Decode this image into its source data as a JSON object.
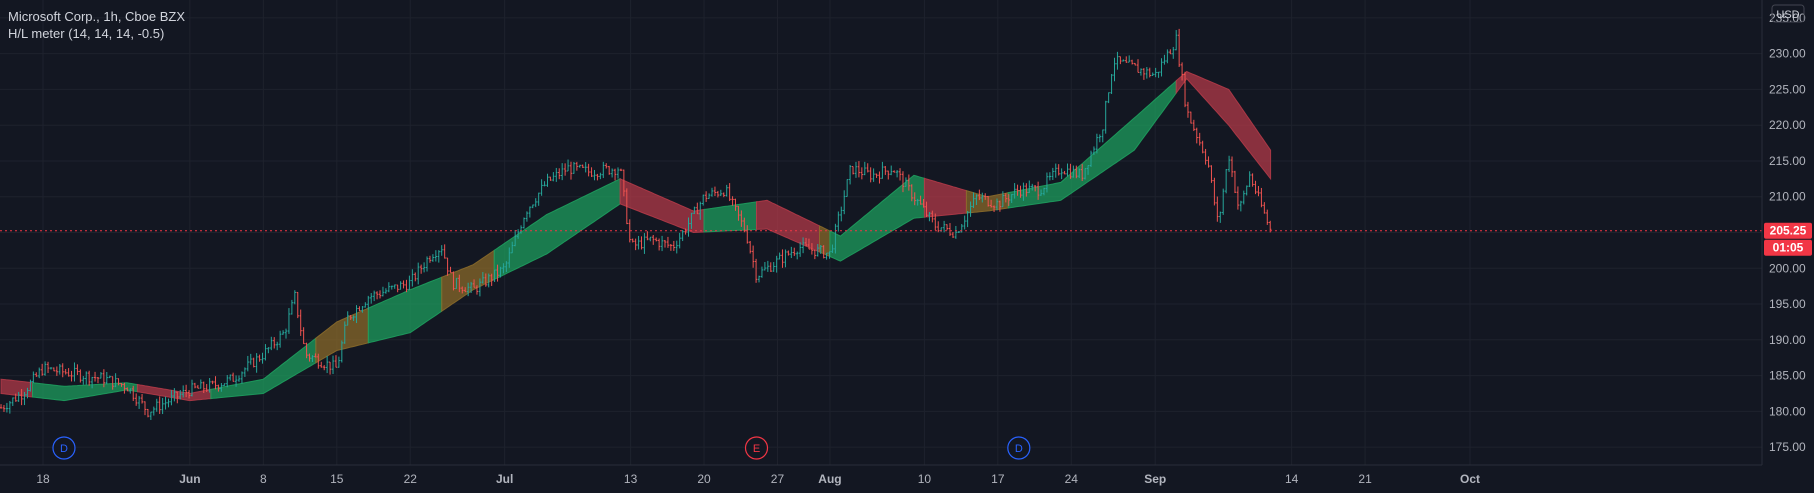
{
  "legend": {
    "title": "Microsoft Corp., 1h, Cboe BZX",
    "indicator": "H/L meter (14, 14, 14, -0.5)"
  },
  "currency": "USD",
  "price_label": "205.25",
  "countdown_label": "01:05",
  "event_markers": [
    {
      "letter": "D",
      "at": "May 20",
      "color": "#2962ff"
    },
    {
      "letter": "E",
      "at": "Jul 25",
      "color": "#f23645"
    },
    {
      "letter": "D",
      "at": "Aug 19",
      "color": "#2962ff"
    }
  ],
  "colors": {
    "background": "#131722",
    "grid": "#1e222d",
    "up_candle": "#26a69a",
    "down_candle": "#ef5350",
    "band_up": "#1e9e5e",
    "band_down": "#b23a48",
    "band_mixed": "#8a6a2a",
    "axis_text": "#b2b5be",
    "price_line": "#f23645"
  },
  "chart_data": {
    "type": "line",
    "title": "Microsoft Corp., 1h, Cboe BZX",
    "ylim": [
      172.5,
      237.5
    ],
    "ylabel": "USD",
    "y_ticks": [
      "175.00",
      "180.00",
      "185.00",
      "190.00",
      "195.00",
      "200.00",
      "205.00",
      "210.00",
      "215.00",
      "220.00",
      "225.00",
      "230.00",
      "235.00"
    ],
    "x_ticks": [
      "18",
      "Jun",
      "8",
      "15",
      "22",
      "Jul",
      "13",
      "20",
      "27",
      "Aug",
      "10",
      "17",
      "24",
      "Sep",
      "14",
      "21",
      "Oct"
    ],
    "x_tick_bold": [
      "Jun",
      "Jul",
      "Aug",
      "Sep",
      "Oct"
    ],
    "last_price": 205.25,
    "price_series": {
      "name": "Microsoft Corp.",
      "points": [
        [
          "May 14",
          180.5
        ],
        [
          "May 16",
          182.5
        ],
        [
          "May 18",
          186
        ],
        [
          "May 20",
          185.5
        ],
        [
          "May 22",
          185
        ],
        [
          "May 24",
          184.5
        ],
        [
          "May 26",
          183.5
        ],
        [
          "May 28",
          180
        ],
        [
          "Jun 1",
          183
        ],
        [
          "Jun 3",
          183.5
        ],
        [
          "Jun 5",
          184.5
        ],
        [
          "Jun 8",
          188
        ],
        [
          "Jun 10",
          191
        ],
        [
          "Jun 11",
          196
        ],
        [
          "Jun 12",
          188
        ],
        [
          "Jun 15",
          186
        ],
        [
          "Jun 16",
          193
        ],
        [
          "Jun 18",
          196
        ],
        [
          "Jun 20",
          197
        ],
        [
          "Jun 22",
          198
        ],
        [
          "Jun 24",
          202
        ],
        [
          "Jun 25",
          203
        ],
        [
          "Jun 26",
          198
        ],
        [
          "Jun 28",
          197
        ],
        [
          "Jul 1",
          200
        ],
        [
          "Jul 3",
          208
        ],
        [
          "Jul 5",
          212
        ],
        [
          "Jul 7",
          214
        ],
        [
          "Jul 9",
          213.5
        ],
        [
          "Jul 12",
          214
        ],
        [
          "Jul 13",
          203
        ],
        [
          "Jul 15",
          204
        ],
        [
          "Jul 17",
          203
        ],
        [
          "Jul 18",
          205
        ],
        [
          "Jul 20",
          210
        ],
        [
          "Jul 22",
          211
        ],
        [
          "Jul 24",
          205
        ],
        [
          "Jul 25",
          199
        ],
        [
          "Jul 27",
          201
        ],
        [
          "Jul 29",
          203
        ],
        [
          "Aug 1",
          202
        ],
        [
          "Aug 3",
          214
        ],
        [
          "Aug 5",
          213
        ],
        [
          "Aug 7",
          214
        ],
        [
          "Aug 9",
          210
        ],
        [
          "Aug 11",
          206
        ],
        [
          "Aug 13",
          205
        ],
        [
          "Aug 15",
          210
        ],
        [
          "Aug 17",
          209
        ],
        [
          "Aug 19",
          211
        ],
        [
          "Aug 21",
          211
        ],
        [
          "Aug 23",
          214
        ],
        [
          "Aug 25",
          213
        ],
        [
          "Aug 27",
          220
        ],
        [
          "Aug 28",
          229
        ],
        [
          "Aug 30",
          228
        ],
        [
          "Sep 1",
          227
        ],
        [
          "Sep 3",
          232
        ],
        [
          "Sep 4",
          222
        ],
        [
          "Sep 6",
          215
        ],
        [
          "Sep 7",
          206
        ],
        [
          "Sep 8",
          216
        ],
        [
          "Sep 9",
          208
        ],
        [
          "Sep 10",
          213
        ],
        [
          "Sep 12",
          205.25
        ]
      ]
    },
    "band_series": [
      {
        "name": "H/L meter upper",
        "points": [
          [
            "May 14",
            184.5
          ],
          [
            "May 20",
            183.5
          ],
          [
            "May 26",
            184
          ],
          [
            "Jun 1",
            182.5
          ],
          [
            "Jun 8",
            184.5
          ],
          [
            "Jun 15",
            192.5
          ],
          [
            "Jun 22",
            197
          ],
          [
            "Jun 28",
            200.5
          ],
          [
            "Jul 5",
            207.5
          ],
          [
            "Jul 12",
            212.5
          ],
          [
            "Jul 19",
            208
          ],
          [
            "Jul 26",
            209.5
          ],
          [
            "Aug 2",
            204.5
          ],
          [
            "Aug 9",
            213
          ],
          [
            "Aug 16",
            210
          ],
          [
            "Aug 23",
            212
          ],
          [
            "Aug 30",
            221
          ],
          [
            "Sep 4",
            227.5
          ],
          [
            "Sep 8",
            225
          ],
          [
            "Sep 12",
            216.5
          ]
        ]
      },
      {
        "name": "H/L meter lower",
        "points": [
          [
            "May 14",
            182.5
          ],
          [
            "May 20",
            181.5
          ],
          [
            "May 26",
            183
          ],
          [
            "Jun 1",
            181.5
          ],
          [
            "Jun 8",
            182.5
          ],
          [
            "Jun 15",
            188.5
          ],
          [
            "Jun 22",
            191
          ],
          [
            "Jun 28",
            197
          ],
          [
            "Jul 5",
            202
          ],
          [
            "Jul 12",
            209
          ],
          [
            "Jul 19",
            205
          ],
          [
            "Jul 26",
            205.5
          ],
          [
            "Aug 2",
            201
          ],
          [
            "Aug 9",
            207
          ],
          [
            "Aug 16",
            208
          ],
          [
            "Aug 23",
            209.5
          ],
          [
            "Aug 30",
            216.5
          ],
          [
            "Sep 4",
            226.5
          ],
          [
            "Sep 8",
            220
          ],
          [
            "Sep 12",
            212.5
          ]
        ]
      }
    ],
    "band_state": [
      [
        "May 14",
        "down"
      ],
      [
        "May 17",
        "up"
      ],
      [
        "May 27",
        "down"
      ],
      [
        "Jun 3",
        "up"
      ],
      [
        "Jun 13",
        "mixed"
      ],
      [
        "Jun 18",
        "up"
      ],
      [
        "Jun 25",
        "mixed"
      ],
      [
        "Jun 30",
        "up"
      ],
      [
        "Jul 12",
        "down"
      ],
      [
        "Jul 20",
        "up"
      ],
      [
        "Jul 25",
        "down"
      ],
      [
        "Jul 31",
        "mixed"
      ],
      [
        "Aug 1",
        "up"
      ],
      [
        "Aug 10",
        "down"
      ],
      [
        "Aug 14",
        "mixed"
      ],
      [
        "Aug 18",
        "up"
      ],
      [
        "Sep 3",
        "down"
      ]
    ]
  }
}
